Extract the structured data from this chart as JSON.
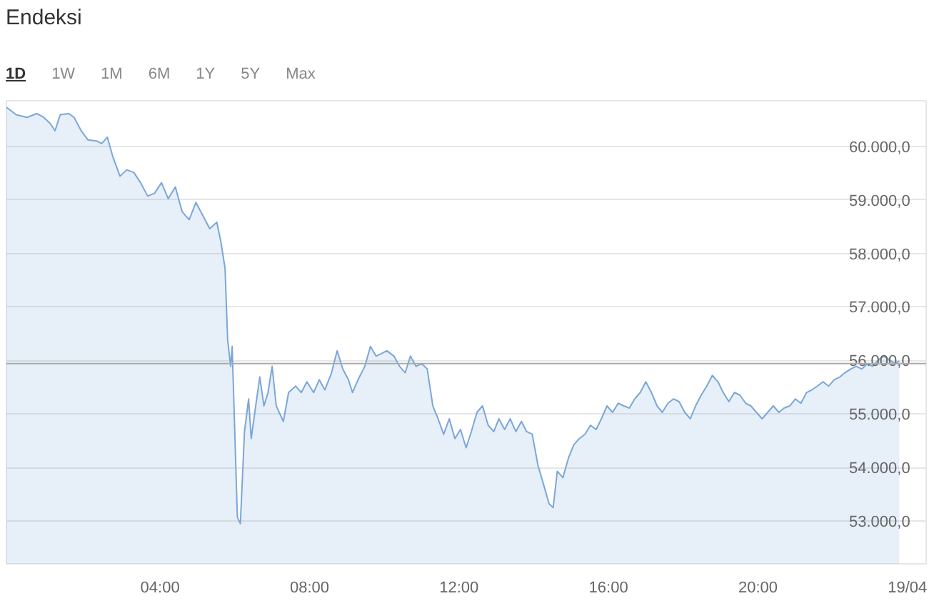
{
  "chart_data": {
    "type": "area",
    "title": "Endeksi",
    "annotations": [
      "1D",
      "1W",
      "1M",
      "6M",
      "1Y",
      "5Y",
      "Max"
    ],
    "x": [
      -0.11,
      0.15,
      0.44,
      0.7,
      0.89,
      1.07,
      1.19,
      1.33,
      1.56,
      1.7,
      1.89,
      2.07,
      2.3,
      2.44,
      2.59,
      2.74,
      2.93,
      3.11,
      3.3,
      3.48,
      3.67,
      3.85,
      4.04,
      4.22,
      4.41,
      4.59,
      4.78,
      4.96,
      5.15,
      5.33,
      5.52,
      5.63,
      5.74,
      5.81,
      5.89,
      5.93,
      6.0,
      6.07,
      6.15,
      6.26,
      6.37,
      6.44,
      6.56,
      6.67,
      6.78,
      6.89,
      7.0,
      7.11,
      7.3,
      7.44,
      7.63,
      7.78,
      7.93,
      8.11,
      8.26,
      8.41,
      8.59,
      8.74,
      8.89,
      9.04,
      9.15,
      9.3,
      9.48,
      9.63,
      9.78,
      9.93,
      10.07,
      10.26,
      10.41,
      10.56,
      10.7,
      10.85,
      11.0,
      11.15,
      11.3,
      11.44,
      11.59,
      11.74,
      11.89,
      12.04,
      12.19,
      12.33,
      12.48,
      12.63,
      12.78,
      12.93,
      13.07,
      13.22,
      13.37,
      13.52,
      13.67,
      13.81,
      13.96,
      14.11,
      14.26,
      14.41,
      14.52,
      14.63,
      14.78,
      14.93,
      15.07,
      15.22,
      15.37,
      15.52,
      15.67,
      15.81,
      15.96,
      16.11,
      16.26,
      16.41,
      16.56,
      16.7,
      16.85,
      17.0,
      17.15,
      17.3,
      17.44,
      17.59,
      17.74,
      17.89,
      18.04,
      18.19,
      18.33,
      18.48,
      18.63,
      18.78,
      18.93,
      19.07,
      19.22,
      19.37,
      19.52,
      19.67,
      19.81,
      19.96,
      20.11,
      20.26,
      20.41,
      20.56,
      20.7,
      20.85,
      21.0,
      21.15,
      21.3,
      21.44,
      21.59,
      21.74,
      21.89,
      22.04,
      22.19,
      22.33,
      22.48,
      22.63,
      22.78,
      22.93,
      23.07,
      23.22,
      23.37,
      23.52,
      23.67,
      23.78
    ],
    "series": [
      {
        "color": "#7ba7d7",
        "values": [
          60730,
          60590,
          60540,
          60610,
          60540,
          60420,
          60290,
          60590,
          60610,
          60540,
          60290,
          60120,
          60100,
          60050,
          60170,
          59800,
          59440,
          59560,
          59510,
          59320,
          59070,
          59120,
          59320,
          59020,
          59240,
          58780,
          58630,
          58950,
          58700,
          58460,
          58580,
          58210,
          57720,
          56380,
          55890,
          56260,
          54670,
          53070,
          52950,
          54670,
          55280,
          54540,
          55150,
          55690,
          55150,
          55400,
          55890,
          55150,
          54860,
          55400,
          55520,
          55400,
          55600,
          55400,
          55640,
          55450,
          55770,
          56180,
          55840,
          55640,
          55400,
          55640,
          55890,
          56260,
          56080,
          56130,
          56180,
          56080,
          55890,
          55770,
          56080,
          55890,
          55940,
          55840,
          55150,
          54910,
          54620,
          54910,
          54540,
          54710,
          54370,
          54670,
          55030,
          55150,
          54790,
          54670,
          54910,
          54710,
          54910,
          54670,
          54860,
          54670,
          54620,
          54050,
          53690,
          53320,
          53250,
          53930,
          53810,
          54180,
          54420,
          54540,
          54620,
          54790,
          54710,
          54910,
          55150,
          55030,
          55200,
          55150,
          55110,
          55280,
          55400,
          55600,
          55400,
          55150,
          55030,
          55200,
          55280,
          55230,
          55030,
          54910,
          55150,
          55350,
          55520,
          55720,
          55600,
          55400,
          55230,
          55400,
          55350,
          55200,
          55150,
          55030,
          54910,
          55030,
          55150,
          55030,
          55110,
          55150,
          55280,
          55200,
          55400,
          55450,
          55520,
          55600,
          55520,
          55640,
          55690,
          55770,
          55840,
          55890,
          55840,
          55940,
          55890,
          56010,
          56080,
          56010,
          55940,
          55990
        ]
      }
    ],
    "xlim": [
      -0.11,
      24.5
    ],
    "xticks": [
      {
        "value": 4,
        "label": "04:00"
      },
      {
        "value": 8,
        "label": "08:00"
      },
      {
        "value": 12,
        "label": "12:00"
      },
      {
        "value": 16,
        "label": "16:00"
      },
      {
        "value": 20,
        "label": "20:00"
      },
      {
        "value": 24,
        "label": "19/04"
      }
    ],
    "ylim": [
      52200,
      60850
    ],
    "yticks": [
      {
        "value": 53000,
        "label": "53.000,0"
      },
      {
        "value": 54000,
        "label": "54.000,0"
      },
      {
        "value": 55000,
        "label": "55.000,0"
      },
      {
        "value": 56000,
        "label": "56.000,0"
      },
      {
        "value": 57000,
        "label": "57.000,0"
      },
      {
        "value": 58000,
        "label": "58.000,0"
      },
      {
        "value": 59000,
        "label": "59.000,0"
      },
      {
        "value": 60000,
        "label": "60.000,0"
      }
    ],
    "ref_lines": [
      {
        "axis": "y",
        "value": 55940,
        "color": "#aaaaaa"
      }
    ],
    "grid": "y"
  }
}
